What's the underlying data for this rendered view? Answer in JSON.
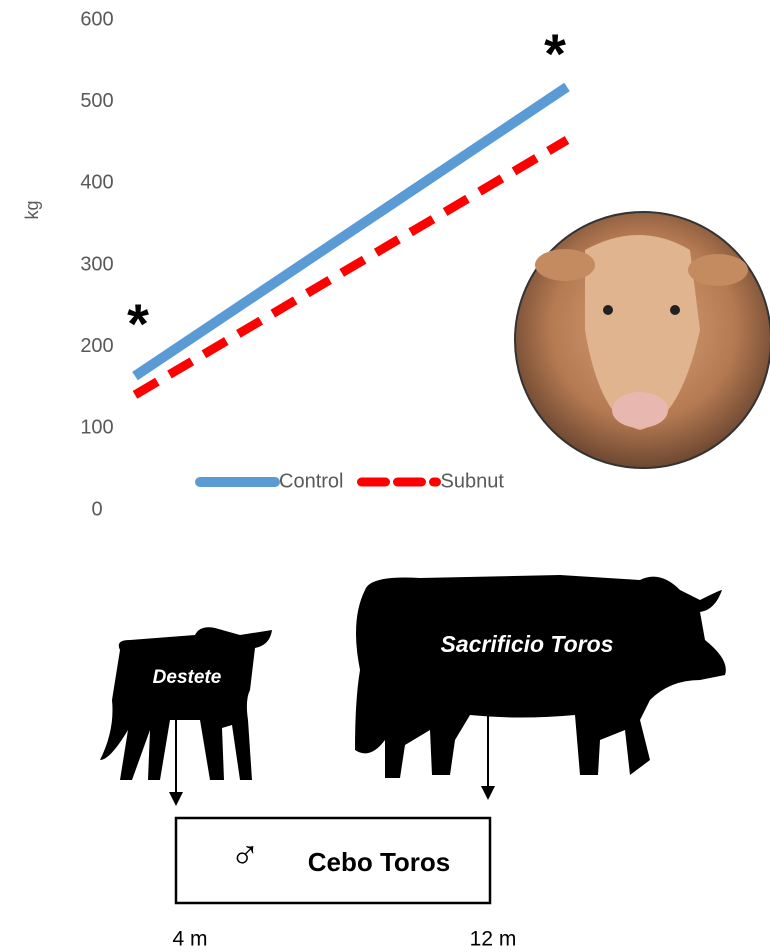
{
  "chart_data": {
    "type": "line",
    "y_label": "kg",
    "categories": [
      null,
      null
    ],
    "series": [
      {
        "name": "Control",
        "color": "#5b9bd5",
        "dashed": false,
        "values": [
          164,
          518
        ]
      },
      {
        "name": "Subnut",
        "color": "#ff0000",
        "dashed": true,
        "values": [
          141,
          453
        ]
      }
    ],
    "ylim": [
      0,
      600
    ],
    "yticks": [
      0,
      100,
      200,
      300,
      400,
      500,
      600
    ],
    "annotations": [
      "*",
      "*"
    ]
  },
  "diagram": {
    "calf_label": "Destete",
    "bull_label": "Sacrificio Toros",
    "symbol": "♂",
    "box_label": "Cebo Toros",
    "timeline": [
      "4 m",
      "12 m"
    ]
  }
}
